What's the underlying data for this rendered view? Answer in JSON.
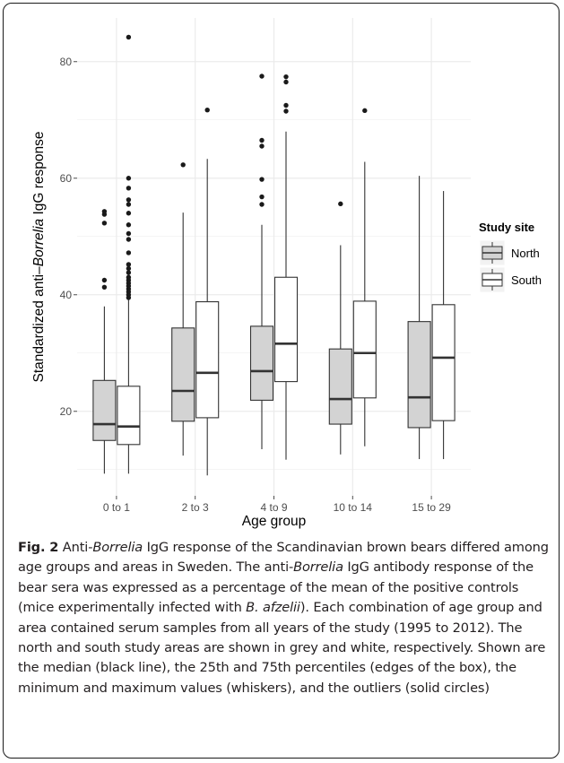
{
  "chart_data": {
    "type": "box",
    "xlabel": "Age group",
    "ylabel": "Standardized anti–Borrelia IgG response",
    "ylabel_parts": [
      "Standardized anti–",
      "Borrelia",
      " IgG response"
    ],
    "ylim": [
      5.5,
      87.5
    ],
    "yticks": [
      20,
      40,
      60,
      80
    ],
    "grid": true,
    "legend": {
      "title": "Study site",
      "placement": "right",
      "entries": [
        "North",
        "South"
      ]
    },
    "colors": {
      "North": "#d3d3d3",
      "South": "#ffffff",
      "panel": "#ffffff",
      "grid": "#ebebeb",
      "outline": "#333333"
    },
    "categories": [
      "0 to 1",
      "2 to 3",
      "4 to 9",
      "10 to 14",
      "15 to 29"
    ],
    "series": [
      {
        "name": "North",
        "boxes": [
          {
            "min": 9.3,
            "q1": 15.0,
            "median": 17.8,
            "q3": 25.3,
            "max": 38.0,
            "outliers": [
              41.3,
              42.5,
              52.3,
              53.8,
              54.3
            ]
          },
          {
            "min": 12.4,
            "q1": 18.3,
            "median": 23.5,
            "q3": 34.3,
            "max": 54.1,
            "outliers": [
              62.3
            ]
          },
          {
            "min": 13.5,
            "q1": 21.9,
            "median": 26.9,
            "q3": 34.6,
            "max": 52.0,
            "outliers": [
              55.5,
              56.8,
              59.8,
              65.5,
              66.5,
              77.5
            ]
          },
          {
            "min": 12.6,
            "q1": 17.8,
            "median": 22.1,
            "q3": 30.7,
            "max": 48.5,
            "outliers": [
              55.6
            ]
          },
          {
            "min": 11.8,
            "q1": 17.2,
            "median": 22.4,
            "q3": 35.4,
            "max": 60.4,
            "outliers": []
          }
        ]
      },
      {
        "name": "South",
        "boxes": [
          {
            "min": 9.3,
            "q1": 14.3,
            "median": 17.4,
            "q3": 24.3,
            "max": 39.1,
            "outliers": [
              39.5,
              40.0,
              40.5,
              41.0,
              41.5,
              42.0,
              42.5,
              43.0,
              43.8,
              44.5,
              45.2,
              47.2,
              49.5,
              50.5,
              52.0,
              54.0,
              55.5,
              56.3,
              58.3,
              60.0,
              84.2
            ]
          },
          {
            "min": 9.0,
            "q1": 18.9,
            "median": 26.6,
            "q3": 38.8,
            "max": 63.3,
            "outliers": [
              71.7
            ]
          },
          {
            "min": 11.7,
            "q1": 25.1,
            "median": 31.6,
            "q3": 43.0,
            "max": 68.0,
            "outliers": [
              71.5,
              72.5,
              76.5,
              77.4
            ]
          },
          {
            "min": 14.0,
            "q1": 22.3,
            "median": 30.0,
            "q3": 38.9,
            "max": 62.8,
            "outliers": [
              71.6
            ]
          },
          {
            "min": 11.8,
            "q1": 18.4,
            "median": 29.2,
            "q3": 38.3,
            "max": 57.8,
            "outliers": []
          }
        ]
      }
    ]
  },
  "caption": {
    "figure_label": "Fig. 2",
    "segments": [
      {
        "text": " Anti-",
        "italic": false
      },
      {
        "text": "Borrelia",
        "italic": true
      },
      {
        "text": " IgG response of the Scandinavian brown bears differed among age groups and areas in Sweden. The anti-",
        "italic": false
      },
      {
        "text": "Borrelia",
        "italic": true
      },
      {
        "text": " IgG antibody response of the bear sera was expressed as a percentage of the mean of the positive controls (mice experimentally infected with ",
        "italic": false
      },
      {
        "text": "B. afzelii",
        "italic": true
      },
      {
        "text": "). Each combination of age group and area contained serum samples from all years of the study (1995 to 2012). The north and south study areas are shown in grey and white, respectively. Shown are the median (black line), the 25th and 75th percentiles (edges of the box), the minimum and maximum values (whiskers), and the outliers (solid circles)",
        "italic": false
      }
    ]
  }
}
